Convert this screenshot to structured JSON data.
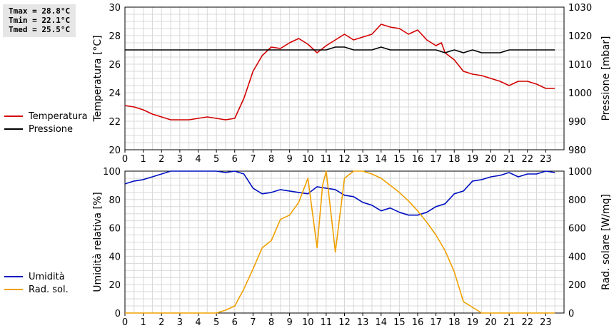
{
  "stats": {
    "tmax": "Tmax = 28.8°C",
    "tmin": "Tmin = 22.1°C",
    "tmed": "Tmed = 25.5°C"
  },
  "colors": {
    "temperature": "#d40000",
    "pressure": "#000000",
    "humidity": "#0010c0",
    "radiation": "#f0a000",
    "grid": "#d8d8d8"
  },
  "chart_data": [
    {
      "type": "line",
      "x_ticks": [
        0,
        1,
        2,
        3,
        4,
        5,
        6,
        7,
        8,
        9,
        10,
        11,
        12,
        13,
        14,
        15,
        16,
        17,
        18,
        19,
        20,
        21,
        22,
        23
      ],
      "xlim": [
        0,
        24
      ],
      "ylabel": "Temperatura [°C]",
      "ylim": [
        20,
        30
      ],
      "y_ticks": [
        20,
        22,
        24,
        26,
        28,
        30
      ],
      "y2label": "Pressione [mbar]",
      "y2lim": [
        980,
        1030
      ],
      "y2_ticks": [
        980,
        990,
        1000,
        1010,
        1020,
        1030
      ],
      "grid": true,
      "legend": "left",
      "series": [
        {
          "name": "Temperatura",
          "axis": "left",
          "x": [
            0,
            0.5,
            1,
            1.5,
            2,
            2.5,
            3,
            3.5,
            4,
            4.5,
            5,
            5.5,
            6,
            6.5,
            7,
            7.5,
            8,
            8.5,
            9,
            9.5,
            10,
            10.5,
            11,
            11.5,
            12,
            12.5,
            13,
            13.5,
            14,
            14.5,
            15,
            15.5,
            16,
            16.5,
            17,
            17.3,
            17.5,
            18,
            18.5,
            19,
            19.5,
            20,
            20.5,
            21,
            21.5,
            22,
            22.5,
            23,
            23.5
          ],
          "y": [
            23.1,
            23.0,
            22.8,
            22.5,
            22.3,
            22.1,
            22.1,
            22.1,
            22.2,
            22.3,
            22.2,
            22.1,
            22.2,
            23.6,
            25.5,
            26.6,
            27.2,
            27.1,
            27.5,
            27.8,
            27.4,
            26.8,
            27.3,
            27.7,
            28.1,
            27.7,
            27.9,
            28.1,
            28.8,
            28.6,
            28.5,
            28.1,
            28.4,
            27.7,
            27.3,
            27.5,
            26.8,
            26.3,
            25.5,
            25.3,
            25.2,
            25.0,
            24.8,
            24.5,
            24.8,
            24.8,
            24.6,
            24.3,
            24.3
          ]
        },
        {
          "name": "Pressione",
          "axis": "right",
          "x": [
            0,
            1,
            2,
            3,
            4,
            5,
            6,
            7,
            8,
            9,
            10,
            11,
            11.5,
            12,
            12.5,
            13,
            13.5,
            14,
            14.5,
            15,
            16,
            17,
            17.5,
            18,
            18.5,
            19,
            19.5,
            20,
            20.5,
            21,
            22,
            23,
            23.5
          ],
          "y": [
            1015,
            1015,
            1015,
            1015,
            1015,
            1015,
            1015,
            1015,
            1015,
            1015,
            1015,
            1015,
            1016,
            1016,
            1015,
            1015,
            1015,
            1016,
            1015,
            1015,
            1015,
            1015,
            1014,
            1015,
            1014,
            1015,
            1014,
            1014,
            1014,
            1015,
            1015,
            1015,
            1015
          ]
        }
      ]
    },
    {
      "type": "line",
      "x_ticks": [
        0,
        1,
        2,
        3,
        4,
        5,
        6,
        7,
        8,
        9,
        10,
        11,
        12,
        13,
        14,
        15,
        16,
        17,
        18,
        19,
        20,
        21,
        22,
        23
      ],
      "xlim": [
        0,
        24
      ],
      "ylabel": "Umidità relativa [%]",
      "ylim": [
        0,
        100
      ],
      "y_ticks": [
        0,
        20,
        40,
        60,
        80,
        100
      ],
      "y2label": "Rad. solare [W/mq]",
      "y2lim": [
        0,
        1000
      ],
      "y2_ticks": [
        0,
        200,
        400,
        600,
        800,
        1000
      ],
      "grid": true,
      "legend": "left",
      "series": [
        {
          "name": "Umidità",
          "axis": "left",
          "x": [
            0,
            0.5,
            1,
            1.5,
            2,
            2.5,
            3,
            3.5,
            4,
            4.5,
            5,
            5.5,
            6,
            6.5,
            7,
            7.5,
            8,
            8.5,
            9,
            9.5,
            10,
            10.5,
            11,
            11.5,
            12,
            12.5,
            13,
            13.5,
            14,
            14.5,
            15,
            15.5,
            16,
            16.5,
            17,
            17.5,
            18,
            18.5,
            19,
            19.5,
            20,
            20.5,
            21,
            21.5,
            22,
            22.5,
            23,
            23.5
          ],
          "y": [
            91,
            93,
            94,
            96,
            98,
            100,
            100,
            100,
            100,
            100,
            100,
            99,
            100,
            98,
            88,
            84,
            85,
            87,
            86,
            85,
            84,
            89,
            88,
            87,
            83,
            82,
            78,
            76,
            72,
            74,
            71,
            69,
            69,
            71,
            75,
            77,
            84,
            86,
            93,
            94,
            96,
            97,
            99,
            96,
            98,
            98,
            100,
            99
          ]
        },
        {
          "name": "Rad. sol.",
          "axis": "right",
          "x": [
            0,
            1,
            2,
            3,
            4,
            5,
            5.5,
            6,
            6.5,
            7,
            7.5,
            8,
            8.5,
            9,
            9.5,
            10,
            10.5,
            10.8,
            11,
            11.5,
            12,
            12.5,
            13,
            13.5,
            14,
            14.5,
            15,
            15.5,
            16,
            16.5,
            17,
            17.5,
            18,
            18.5,
            19,
            19.5,
            20,
            21,
            22,
            23,
            23.5
          ],
          "y": [
            0,
            0,
            0,
            0,
            0,
            0,
            20,
            50,
            170,
            310,
            460,
            510,
            660,
            690,
            780,
            950,
            460,
            900,
            1000,
            430,
            950,
            1000,
            1000,
            980,
            950,
            900,
            850,
            790,
            720,
            640,
            550,
            440,
            290,
            80,
            40,
            0,
            0,
            0,
            0,
            0,
            0
          ]
        }
      ]
    }
  ]
}
